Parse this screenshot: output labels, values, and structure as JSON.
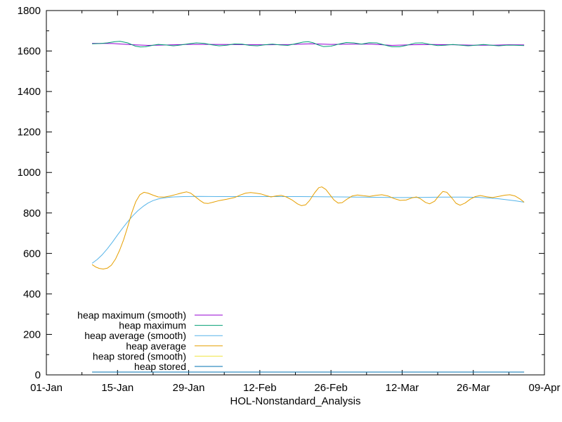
{
  "chart_data": {
    "type": "line",
    "title": "",
    "xlabel": "HOL-Nonstandard_Analysis",
    "ylabel": "",
    "grid": false,
    "colors": {
      "background": "#ffffff",
      "border": "#000000",
      "text": "#000000"
    },
    "x_axis": {
      "range_days": [
        0,
        98
      ],
      "tick_labels": [
        "01-Jan",
        "15-Jan",
        "29-Jan",
        "12-Feb",
        "26-Feb",
        "12-Mar",
        "26-Mar",
        "09-Apr"
      ],
      "tick_days": [
        0,
        14,
        28,
        42,
        56,
        70,
        84,
        98
      ],
      "minor_tick_days": [
        7,
        21,
        35,
        49,
        63,
        77,
        91
      ]
    },
    "y_axis": {
      "range": [
        0,
        1800
      ],
      "tick_labels": [
        "0",
        "200",
        "400",
        "600",
        "800",
        "1000",
        "1200",
        "1400",
        "1600",
        "1800"
      ],
      "tick_values": [
        0,
        200,
        400,
        600,
        800,
        1000,
        1200,
        1400,
        1600,
        1800
      ],
      "minor_tick_values": [
        100,
        300,
        500,
        700,
        900,
        1100,
        1300,
        1500,
        1700
      ]
    },
    "legend": {
      "position": "inside-bottom-left",
      "entries": [
        "heap maximum (smooth)",
        "heap maximum",
        "heap average (smooth)",
        "heap average",
        "heap stored (smooth)",
        "heap stored"
      ]
    },
    "series": [
      {
        "name": "heap maximum (smooth)",
        "color": "#9400d3",
        "points": [
          [
            9,
            1638
          ],
          [
            13,
            1637
          ],
          [
            17,
            1631
          ],
          [
            20,
            1628
          ],
          [
            24,
            1630
          ],
          [
            28,
            1633
          ],
          [
            32,
            1633
          ],
          [
            36,
            1632
          ],
          [
            40,
            1631
          ],
          [
            44,
            1631
          ],
          [
            48,
            1632
          ],
          [
            52,
            1636
          ],
          [
            56,
            1633
          ],
          [
            60,
            1634
          ],
          [
            64,
            1634
          ],
          [
            68,
            1628
          ],
          [
            72,
            1631
          ],
          [
            76,
            1632
          ],
          [
            80,
            1631
          ],
          [
            84,
            1629
          ],
          [
            88,
            1629
          ],
          [
            91,
            1631
          ],
          [
            94,
            1630
          ]
        ]
      },
      {
        "name": "heap maximum",
        "color": "#009e73",
        "points": [
          [
            9,
            1636
          ],
          [
            10.5,
            1637
          ],
          [
            12,
            1640
          ],
          [
            13.5,
            1646
          ],
          [
            14.5,
            1648
          ],
          [
            16,
            1640
          ],
          [
            17.5,
            1624
          ],
          [
            18.5,
            1620
          ],
          [
            19.5,
            1621
          ],
          [
            21,
            1629
          ],
          [
            22,
            1633
          ],
          [
            23.5,
            1630
          ],
          [
            25,
            1626
          ],
          [
            26.5,
            1630
          ],
          [
            28,
            1636
          ],
          [
            29.5,
            1640
          ],
          [
            31,
            1638
          ],
          [
            32.5,
            1631
          ],
          [
            34,
            1626
          ],
          [
            35.5,
            1629
          ],
          [
            37,
            1635
          ],
          [
            38.5,
            1634
          ],
          [
            40,
            1628
          ],
          [
            41.5,
            1626
          ],
          [
            43,
            1631
          ],
          [
            44.5,
            1634
          ],
          [
            46,
            1630
          ],
          [
            47.5,
            1628
          ],
          [
            49,
            1636
          ],
          [
            50.5,
            1644
          ],
          [
            51.5,
            1646
          ],
          [
            52.5,
            1641
          ],
          [
            53.5,
            1630
          ],
          [
            54.5,
            1622
          ],
          [
            56,
            1624
          ],
          [
            57.5,
            1634
          ],
          [
            59,
            1642
          ],
          [
            60.5,
            1640
          ],
          [
            62,
            1634
          ],
          [
            63.5,
            1641
          ],
          [
            65,
            1640
          ],
          [
            66.5,
            1630
          ],
          [
            68,
            1621
          ],
          [
            69.5,
            1621
          ],
          [
            71,
            1629
          ],
          [
            72.5,
            1639
          ],
          [
            74,
            1640
          ],
          [
            75.5,
            1633
          ],
          [
            77,
            1627
          ],
          [
            78.5,
            1629
          ],
          [
            80,
            1632
          ],
          [
            81.5,
            1629
          ],
          [
            83,
            1626
          ],
          [
            84.5,
            1629
          ],
          [
            86,
            1632
          ],
          [
            87.5,
            1629
          ],
          [
            89,
            1626
          ],
          [
            90.5,
            1629
          ],
          [
            92,
            1629
          ],
          [
            94,
            1627
          ]
        ]
      },
      {
        "name": "heap average (smooth)",
        "color": "#56b4e9",
        "points": [
          [
            9,
            551
          ],
          [
            10,
            570
          ],
          [
            11,
            594
          ],
          [
            12,
            623
          ],
          [
            13,
            656
          ],
          [
            14,
            691
          ],
          [
            15,
            725
          ],
          [
            16,
            757
          ],
          [
            17,
            786
          ],
          [
            18,
            811
          ],
          [
            19,
            832
          ],
          [
            20,
            849
          ],
          [
            21,
            861
          ],
          [
            22,
            869
          ],
          [
            23,
            874
          ],
          [
            24,
            877
          ],
          [
            25,
            879
          ],
          [
            27,
            881
          ],
          [
            30,
            882
          ],
          [
            34,
            881
          ],
          [
            38,
            881
          ],
          [
            42,
            881
          ],
          [
            46,
            881
          ],
          [
            50,
            881
          ],
          [
            54,
            880
          ],
          [
            58,
            879
          ],
          [
            62,
            878
          ],
          [
            66,
            877
          ],
          [
            70,
            876
          ],
          [
            74,
            877
          ],
          [
            78,
            878
          ],
          [
            82,
            878
          ],
          [
            85,
            877
          ],
          [
            87,
            874
          ],
          [
            89,
            870
          ],
          [
            91,
            864
          ],
          [
            92.5,
            859
          ],
          [
            94,
            853
          ]
        ]
      },
      {
        "name": "heap average",
        "color": "#e69f00",
        "points": [
          [
            9,
            545
          ],
          [
            9.7,
            533
          ],
          [
            10.4,
            526
          ],
          [
            11.2,
            523
          ],
          [
            12,
            527
          ],
          [
            12.8,
            542
          ],
          [
            13.6,
            572
          ],
          [
            14.4,
            615
          ],
          [
            15.2,
            668
          ],
          [
            16,
            732
          ],
          [
            16.8,
            800
          ],
          [
            17.6,
            856
          ],
          [
            18.4,
            890
          ],
          [
            19.2,
            902
          ],
          [
            20,
            898
          ],
          [
            21,
            888
          ],
          [
            22,
            879
          ],
          [
            23.2,
            878
          ],
          [
            24.4,
            884
          ],
          [
            25.6,
            892
          ],
          [
            26.8,
            900
          ],
          [
            27.6,
            904
          ],
          [
            28.4,
            898
          ],
          [
            29.2,
            882
          ],
          [
            30.2,
            862
          ],
          [
            31,
            849
          ],
          [
            31.8,
            847
          ],
          [
            32.8,
            853
          ],
          [
            34,
            861
          ],
          [
            35.5,
            868
          ],
          [
            37,
            876
          ],
          [
            38.2,
            889
          ],
          [
            39.2,
            898
          ],
          [
            40.2,
            901
          ],
          [
            41.2,
            898
          ],
          [
            42.2,
            894
          ],
          [
            43.2,
            886
          ],
          [
            44.2,
            879
          ],
          [
            45.2,
            884
          ],
          [
            46.2,
            887
          ],
          [
            47.2,
            879
          ],
          [
            48.4,
            863
          ],
          [
            49.4,
            845
          ],
          [
            50.2,
            836
          ],
          [
            51,
            840
          ],
          [
            51.8,
            862
          ],
          [
            52.8,
            900
          ],
          [
            53.6,
            925
          ],
          [
            54.2,
            929
          ],
          [
            55,
            916
          ],
          [
            55.8,
            890
          ],
          [
            56.6,
            864
          ],
          [
            57.4,
            849
          ],
          [
            58.2,
            851
          ],
          [
            59.2,
            869
          ],
          [
            60.2,
            884
          ],
          [
            61.2,
            889
          ],
          [
            62.4,
            885
          ],
          [
            63.6,
            882
          ],
          [
            64.8,
            887
          ],
          [
            66,
            890
          ],
          [
            67.2,
            884
          ],
          [
            68.4,
            871
          ],
          [
            69.6,
            862
          ],
          [
            70.8,
            864
          ],
          [
            72,
            875
          ],
          [
            72.8,
            879
          ],
          [
            73.6,
            870
          ],
          [
            74.6,
            852
          ],
          [
            75.4,
            845
          ],
          [
            76.4,
            858
          ],
          [
            77.2,
            884
          ],
          [
            78,
            906
          ],
          [
            78.8,
            902
          ],
          [
            79.8,
            874
          ],
          [
            80.6,
            848
          ],
          [
            81.4,
            838
          ],
          [
            82.4,
            849
          ],
          [
            83.4,
            868
          ],
          [
            84.4,
            881
          ],
          [
            85.4,
            886
          ],
          [
            86.6,
            880
          ],
          [
            87.8,
            876
          ],
          [
            89,
            882
          ],
          [
            90.2,
            888
          ],
          [
            91.2,
            890
          ],
          [
            92.2,
            884
          ],
          [
            93.2,
            869
          ],
          [
            94,
            853
          ]
        ]
      },
      {
        "name": "heap stored (smooth)",
        "color": "#f0e442",
        "points": [
          [
            9,
            14
          ],
          [
            94,
            14
          ]
        ]
      },
      {
        "name": "heap stored",
        "color": "#0072b2",
        "points": [
          [
            9,
            14
          ],
          [
            94,
            14
          ]
        ]
      }
    ]
  }
}
